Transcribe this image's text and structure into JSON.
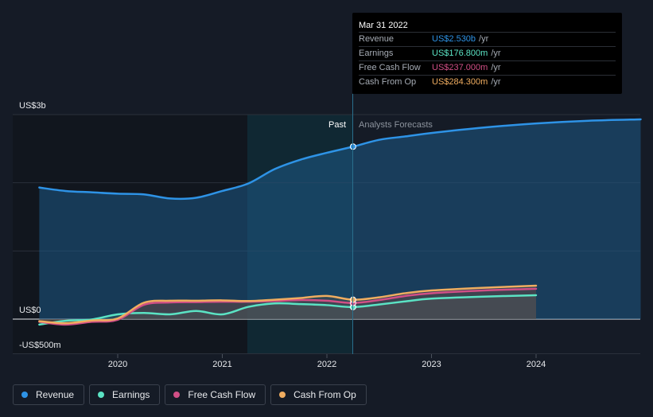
{
  "chart_data": {
    "type": "line",
    "y_labels": {
      "top": "US$3b",
      "zero": "US$0",
      "bottom": "-US$500m"
    },
    "ylim": [
      -500,
      3000
    ],
    "x_ticks": [
      "2020",
      "2021",
      "2022",
      "2023",
      "2024"
    ],
    "past_label": "Past",
    "forecast_label": "Analysts Forecasts",
    "series": [
      {
        "name": "Revenue",
        "color": "#2e93e6",
        "points": [
          [
            2019.25,
            1930
          ],
          [
            2019.5,
            1880
          ],
          [
            2019.75,
            1860
          ],
          [
            2020.0,
            1840
          ],
          [
            2020.25,
            1830
          ],
          [
            2020.5,
            1770
          ],
          [
            2020.75,
            1780
          ],
          [
            2021.0,
            1880
          ],
          [
            2021.25,
            1990
          ],
          [
            2021.5,
            2200
          ],
          [
            2021.75,
            2340
          ],
          [
            2022.0,
            2440
          ],
          [
            2022.25,
            2530
          ],
          [
            2022.5,
            2630
          ],
          [
            2022.75,
            2680
          ],
          [
            2023.0,
            2730
          ],
          [
            2023.5,
            2810
          ],
          [
            2024.0,
            2870
          ],
          [
            2024.5,
            2910
          ],
          [
            2025.0,
            2930
          ]
        ]
      },
      {
        "name": "Earnings",
        "color": "#5be3c4",
        "points": [
          [
            2019.25,
            -80
          ],
          [
            2019.5,
            -25
          ],
          [
            2019.75,
            -5
          ],
          [
            2020.0,
            70
          ],
          [
            2020.25,
            90
          ],
          [
            2020.5,
            70
          ],
          [
            2020.75,
            120
          ],
          [
            2021.0,
            70
          ],
          [
            2021.25,
            180
          ],
          [
            2021.5,
            230
          ],
          [
            2021.75,
            220
          ],
          [
            2022.0,
            205
          ],
          [
            2022.25,
            176.8
          ],
          [
            2022.5,
            215
          ],
          [
            2022.75,
            260
          ],
          [
            2023.0,
            300
          ],
          [
            2023.5,
            330
          ],
          [
            2024.0,
            350
          ]
        ]
      },
      {
        "name": "Free Cash Flow",
        "color": "#d14f86",
        "points": [
          [
            2019.25,
            -40
          ],
          [
            2019.5,
            -80
          ],
          [
            2019.75,
            -40
          ],
          [
            2020.0,
            -10
          ],
          [
            2020.25,
            210
          ],
          [
            2020.5,
            245
          ],
          [
            2020.75,
            250
          ],
          [
            2021.0,
            255
          ],
          [
            2021.25,
            255
          ],
          [
            2021.5,
            265
          ],
          [
            2021.75,
            280
          ],
          [
            2022.0,
            270
          ],
          [
            2022.25,
            237
          ],
          [
            2022.5,
            280
          ],
          [
            2022.75,
            340
          ],
          [
            2023.0,
            380
          ],
          [
            2023.5,
            420
          ],
          [
            2024.0,
            445
          ]
        ]
      },
      {
        "name": "Cash From Op",
        "color": "#f0ad60",
        "points": [
          [
            2019.25,
            -30
          ],
          [
            2019.5,
            -60
          ],
          [
            2019.75,
            -20
          ],
          [
            2020.0,
            10
          ],
          [
            2020.25,
            240
          ],
          [
            2020.5,
            270
          ],
          [
            2020.75,
            270
          ],
          [
            2021.0,
            275
          ],
          [
            2021.25,
            265
          ],
          [
            2021.5,
            285
          ],
          [
            2021.75,
            310
          ],
          [
            2022.0,
            340
          ],
          [
            2022.25,
            284.3
          ],
          [
            2022.5,
            320
          ],
          [
            2022.75,
            380
          ],
          [
            2023.0,
            420
          ],
          [
            2023.5,
            460
          ],
          [
            2024.0,
            490
          ]
        ]
      }
    ],
    "highlight_x": 2022.25
  },
  "tooltip": {
    "date": "Mar 31 2022",
    "rows": [
      {
        "label": "Revenue",
        "value": "US$2.530b",
        "unit": "/yr",
        "color": "#2e93e6"
      },
      {
        "label": "Earnings",
        "value": "US$176.800m",
        "unit": "/yr",
        "color": "#5be3c4"
      },
      {
        "label": "Free Cash Flow",
        "value": "US$237.000m",
        "unit": "/yr",
        "color": "#d14f86"
      },
      {
        "label": "Cash From Op",
        "value": "US$284.300m",
        "unit": "/yr",
        "color": "#f0ad60"
      }
    ]
  },
  "legend": [
    {
      "label": "Revenue",
      "color": "#2e93e6"
    },
    {
      "label": "Earnings",
      "color": "#5be3c4"
    },
    {
      "label": "Free Cash Flow",
      "color": "#d14f86"
    },
    {
      "label": "Cash From Op",
      "color": "#f0ad60"
    }
  ]
}
